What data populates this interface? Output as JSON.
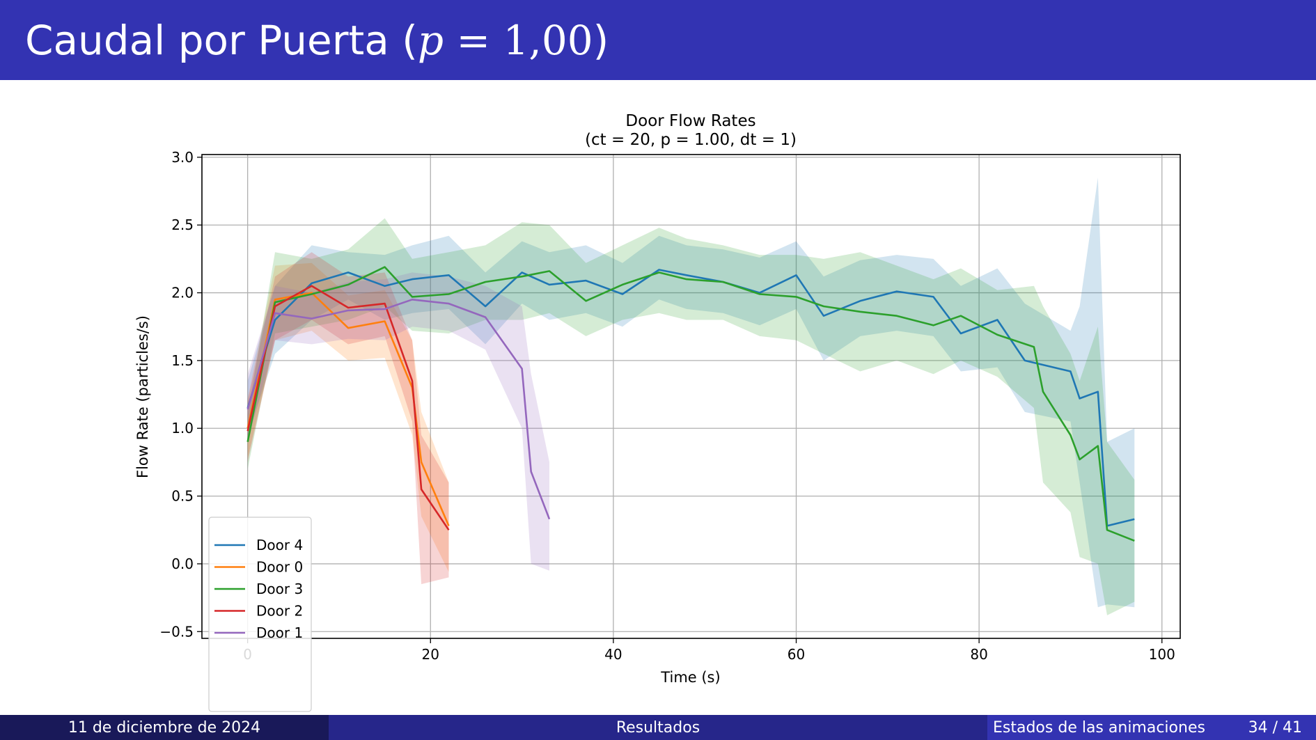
{
  "slide": {
    "title_text": "Caudal por Puerta (",
    "title_var": "p",
    "title_eq": " = 1,00",
    "title_close": ")"
  },
  "footer": {
    "date": "11 de diciembre de 2024",
    "section": "Resultados",
    "subsection": "Estados de las animaciones",
    "page": "34 / 41"
  },
  "colors": {
    "header_bg": "#3333b2",
    "door4": "#1f77b4",
    "door0": "#ff7f0e",
    "door3": "#2ca02c",
    "door2": "#d62728",
    "door1": "#9467bd"
  },
  "chart_data": {
    "type": "line",
    "title": "Door Flow Rates",
    "subtitle": "(ct = 20, p = 1.00, dt = 1)",
    "xlabel": "Time (s)",
    "ylabel": "Flow Rate (particles/s)",
    "xlim": [
      -5,
      102
    ],
    "ylim": [
      -0.55,
      3.02
    ],
    "xticks": [
      0,
      20,
      40,
      60,
      80,
      100
    ],
    "xtick_labels": [
      "0",
      "20",
      "40",
      "60",
      "80",
      "100"
    ],
    "yticks": [
      -0.5,
      0.0,
      0.5,
      1.0,
      1.5,
      2.0,
      2.5,
      3.0
    ],
    "ytick_labels": [
      "−0.5",
      "0.0",
      "0.5",
      "1.0",
      "1.5",
      "2.0",
      "2.5",
      "3.0"
    ],
    "grid": true,
    "legend_position": "lower-left",
    "series": [
      {
        "name": "Door 4",
        "color": "#1f77b4",
        "x": [
          0,
          3,
          7,
          11,
          15,
          18,
          22,
          26,
          30,
          33,
          37,
          41,
          45,
          48,
          52,
          56,
          60,
          63,
          67,
          71,
          75,
          78,
          82,
          85,
          90,
          91,
          93,
          94,
          97
        ],
        "y": [
          1.15,
          1.8,
          2.07,
          2.15,
          2.05,
          2.1,
          2.13,
          1.9,
          2.15,
          2.06,
          2.09,
          1.99,
          2.17,
          2.13,
          2.08,
          2.0,
          2.13,
          1.83,
          1.94,
          2.01,
          1.97,
          1.7,
          1.8,
          1.5,
          1.42,
          1.22,
          1.27,
          0.28,
          0.33
        ],
        "upper": [
          1.35,
          2.05,
          2.35,
          2.3,
          2.28,
          2.35,
          2.42,
          2.15,
          2.38,
          2.3,
          2.35,
          2.22,
          2.42,
          2.35,
          2.32,
          2.26,
          2.38,
          2.12,
          2.24,
          2.28,
          2.25,
          2.05,
          2.18,
          1.92,
          1.72,
          1.9,
          2.85,
          0.9,
          1.0
        ],
        "lower": [
          0.95,
          1.55,
          1.8,
          1.95,
          1.8,
          1.85,
          1.88,
          1.62,
          1.92,
          1.8,
          1.85,
          1.75,
          1.95,
          1.88,
          1.85,
          1.76,
          1.88,
          1.5,
          1.68,
          1.72,
          1.68,
          1.42,
          1.45,
          1.12,
          1.05,
          0.6,
          -0.32,
          -0.3,
          -0.32
        ]
      },
      {
        "name": "Door 0",
        "color": "#ff7f0e",
        "x": [
          0,
          3,
          7,
          11,
          15,
          18,
          19,
          22
        ],
        "y": [
          1.0,
          1.95,
          2.0,
          1.74,
          1.79,
          1.3,
          0.75,
          0.28
        ],
        "upper": [
          1.22,
          2.2,
          2.22,
          1.98,
          2.02,
          1.65,
          1.12,
          0.6
        ],
        "lower": [
          0.78,
          1.65,
          1.72,
          1.5,
          1.52,
          0.95,
          0.35,
          -0.06
        ]
      },
      {
        "name": "Door 3",
        "color": "#2ca02c",
        "x": [
          0,
          3,
          7,
          11,
          15,
          18,
          22,
          26,
          30,
          33,
          37,
          41,
          45,
          48,
          52,
          56,
          60,
          63,
          67,
          71,
          75,
          78,
          82,
          86,
          87,
          90,
          91,
          93,
          94,
          97
        ],
        "y": [
          0.9,
          1.93,
          1.99,
          2.06,
          2.19,
          1.97,
          1.99,
          2.08,
          2.12,
          2.16,
          1.94,
          2.06,
          2.15,
          2.1,
          2.08,
          1.99,
          1.97,
          1.9,
          1.86,
          1.83,
          1.76,
          1.83,
          1.69,
          1.6,
          1.27,
          0.95,
          0.77,
          0.87,
          0.25,
          0.17
        ],
        "upper": [
          1.1,
          2.3,
          2.25,
          2.32,
          2.55,
          2.25,
          2.3,
          2.35,
          2.52,
          2.5,
          2.22,
          2.35,
          2.48,
          2.4,
          2.35,
          2.28,
          2.28,
          2.25,
          2.3,
          2.2,
          2.1,
          2.18,
          2.02,
          2.05,
          1.9,
          1.55,
          1.35,
          1.75,
          0.9,
          0.62
        ],
        "lower": [
          0.7,
          1.7,
          1.75,
          1.8,
          1.9,
          1.72,
          1.7,
          1.8,
          1.8,
          1.85,
          1.68,
          1.8,
          1.85,
          1.8,
          1.8,
          1.68,
          1.65,
          1.55,
          1.42,
          1.5,
          1.4,
          1.5,
          1.38,
          1.15,
          0.6,
          0.38,
          0.05,
          0.0,
          -0.38,
          -0.28
        ]
      },
      {
        "name": "Door 2",
        "color": "#d62728",
        "x": [
          0,
          3,
          7,
          11,
          15,
          18,
          19,
          22
        ],
        "y": [
          0.98,
          1.9,
          2.05,
          1.89,
          1.92,
          1.35,
          0.55,
          0.25
        ],
        "upper": [
          1.2,
          2.12,
          2.3,
          2.12,
          2.15,
          1.65,
          0.95,
          0.6
        ],
        "lower": [
          0.75,
          1.65,
          1.8,
          1.62,
          1.68,
          1.05,
          -0.15,
          -0.1
        ]
      },
      {
        "name": "Door 1",
        "color": "#9467bd",
        "x": [
          0,
          3,
          7,
          11,
          15,
          18,
          22,
          26,
          30,
          31,
          33
        ],
        "y": [
          1.14,
          1.85,
          1.81,
          1.87,
          1.88,
          1.95,
          1.92,
          1.82,
          1.44,
          0.68,
          0.33
        ],
        "upper": [
          1.4,
          2.05,
          2.0,
          2.08,
          2.1,
          2.15,
          2.12,
          2.05,
          1.9,
          1.4,
          0.75
        ],
        "lower": [
          0.9,
          1.65,
          1.62,
          1.66,
          1.65,
          1.75,
          1.72,
          1.58,
          1.0,
          0.0,
          -0.05
        ]
      }
    ],
    "legend": [
      {
        "name": "Door 4",
        "color": "#1f77b4"
      },
      {
        "name": "Door 0",
        "color": "#ff7f0e"
      },
      {
        "name": "Door 3",
        "color": "#2ca02c"
      },
      {
        "name": "Door 2",
        "color": "#d62728"
      },
      {
        "name": "Door 1",
        "color": "#9467bd"
      }
    ]
  }
}
